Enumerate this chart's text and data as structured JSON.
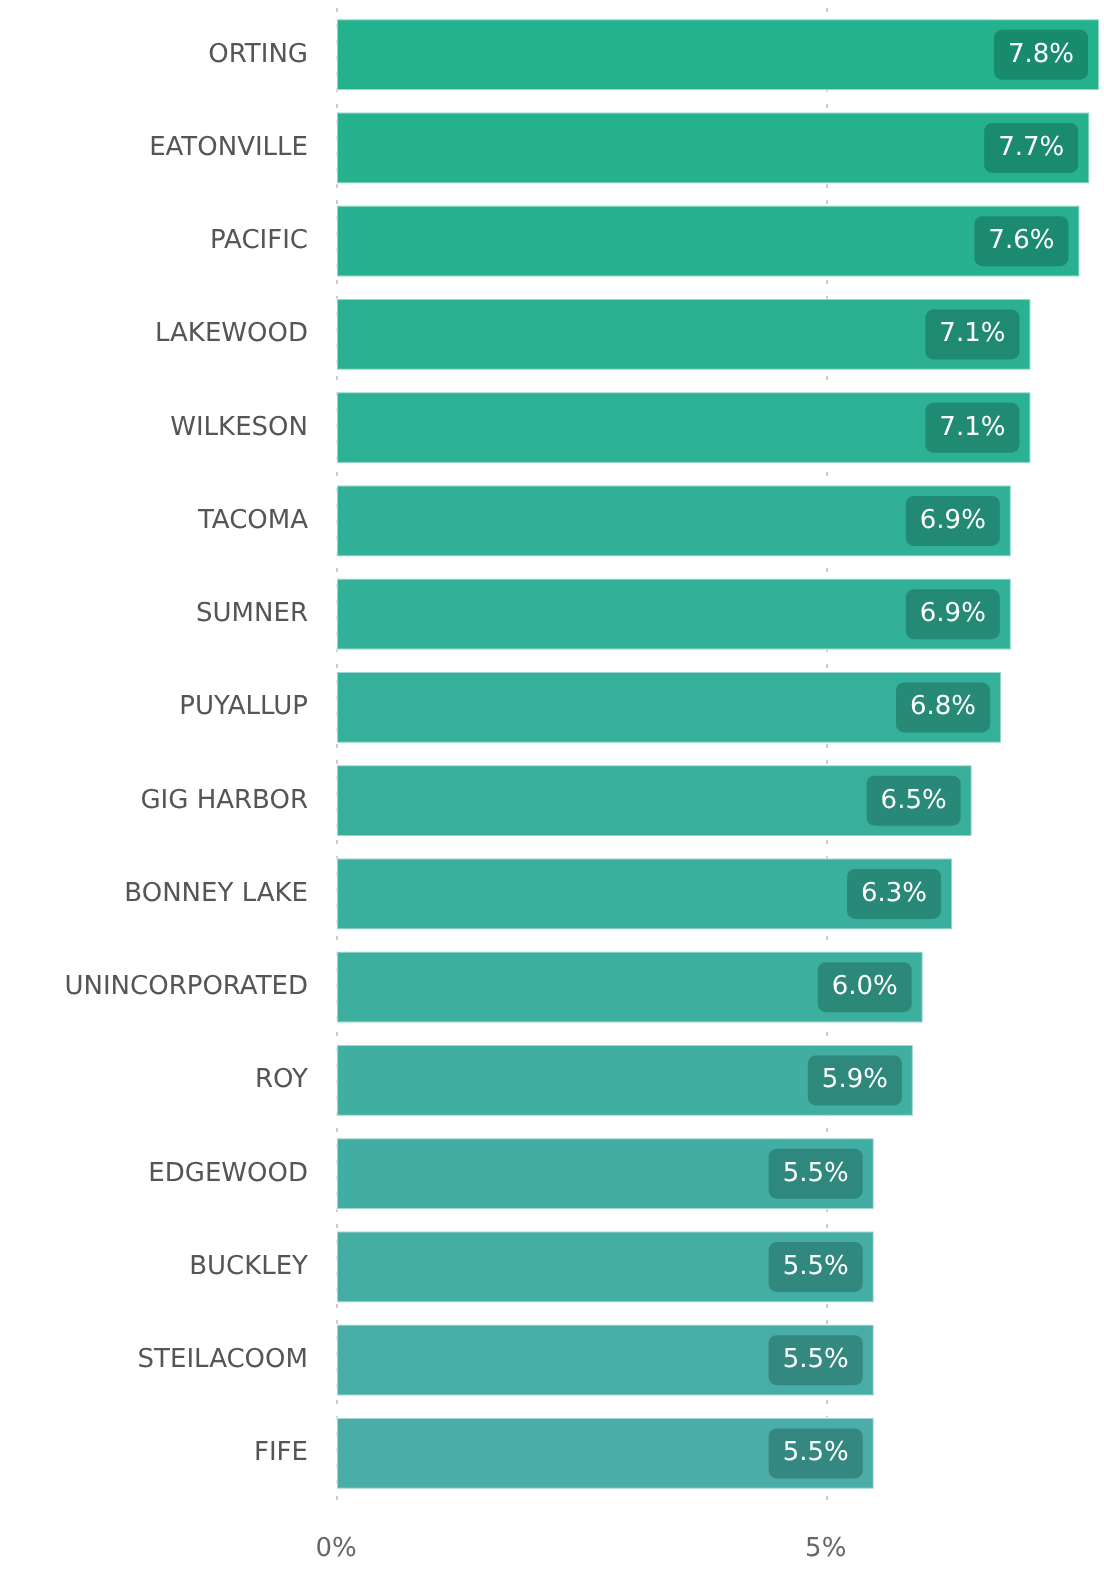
{
  "chart_data": {
    "type": "bar",
    "orientation": "horizontal",
    "categories": [
      "ORTING",
      "EATONVILLE",
      "PACIFIC",
      "LAKEWOOD",
      "WILKESON",
      "TACOMA",
      "SUMNER",
      "PUYALLUP",
      "GIG HARBOR",
      "BONNEY LAKE",
      "UNINCORPORATED",
      "ROY",
      "EDGEWOOD",
      "BUCKLEY",
      "STEILACOOM",
      "FIFE"
    ],
    "values": [
      7.8,
      7.7,
      7.6,
      7.1,
      7.1,
      6.9,
      6.9,
      6.8,
      6.5,
      6.3,
      6.0,
      5.9,
      5.5,
      5.5,
      5.5,
      5.5
    ],
    "value_labels": [
      "7.8%",
      "7.7%",
      "7.6%",
      "7.1%",
      "7.1%",
      "6.9%",
      "6.9%",
      "6.8%",
      "6.5%",
      "6.3%",
      "6.0%",
      "5.9%",
      "5.5%",
      "5.5%",
      "5.5%",
      "5.5%"
    ],
    "colors": [
      "#23b28d",
      "#26b28f",
      "#28b191",
      "#2bb192",
      "#2db194",
      "#30b096",
      "#33b098",
      "#35b09a",
      "#38af9b",
      "#3aaf9d",
      "#3daf9f",
      "#40aea1",
      "#42aea3",
      "#45aea4",
      "#47ada6",
      "#4aada8"
    ],
    "xlim": [
      0,
      7.8
    ],
    "xticks": [
      {
        "value": 0,
        "label": "0%"
      },
      {
        "value": 5,
        "label": "5%"
      }
    ],
    "grid": "x"
  }
}
